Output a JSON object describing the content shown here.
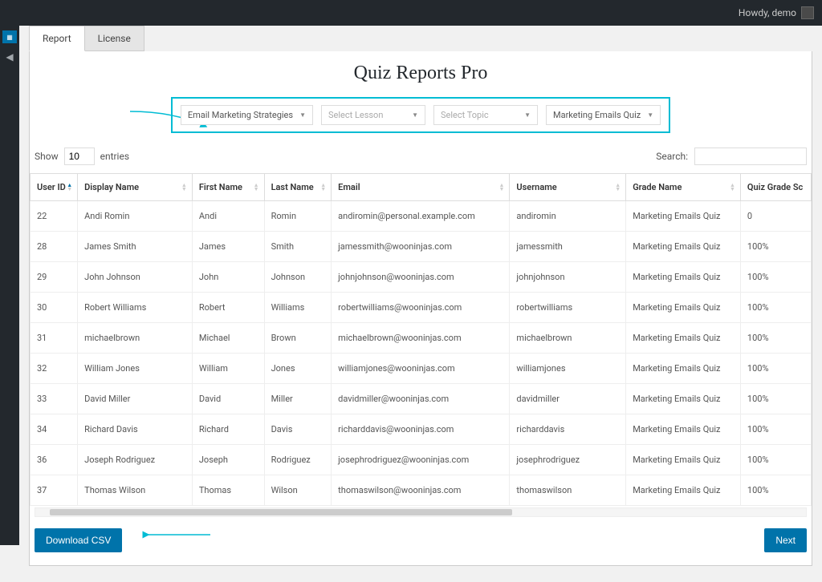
{
  "topbar": {
    "howdy": "Howdy, demo"
  },
  "tabs": {
    "report": "Report",
    "license": "License"
  },
  "page": {
    "title": "Quiz Reports Pro"
  },
  "filters": {
    "course": "Email Marketing Strategies",
    "lesson_placeholder": "Select Lesson",
    "topic_placeholder": "Select Topic",
    "quiz": "Marketing Emails Quiz"
  },
  "controls": {
    "show_label": "Show",
    "entries_value": "10",
    "entries_label": "entries",
    "search_label": "Search:"
  },
  "table": {
    "columns": [
      "User ID",
      "Display Name",
      "First Name",
      "Last Name",
      "Email",
      "Username",
      "Grade Name",
      "Quiz Grade Sc"
    ],
    "rows": [
      [
        "22",
        "Andi Romin",
        "Andi",
        "Romin",
        "andiromin@personal.example.com",
        "andiromin",
        "Marketing Emails Quiz",
        "0"
      ],
      [
        "28",
        "James Smith",
        "James",
        "Smith",
        "jamessmith@wooninjas.com",
        "jamessmith",
        "Marketing Emails Quiz",
        "100%"
      ],
      [
        "29",
        "John Johnson",
        "John",
        "Johnson",
        "johnjohnson@wooninjas.com",
        "johnjohnson",
        "Marketing Emails Quiz",
        "100%"
      ],
      [
        "30",
        "Robert Williams",
        "Robert",
        "Williams",
        "robertwilliams@wooninjas.com",
        "robertwilliams",
        "Marketing Emails Quiz",
        "100%"
      ],
      [
        "31",
        "michaelbrown",
        "Michael",
        "Brown",
        "michaelbrown@wooninjas.com",
        "michaelbrown",
        "Marketing Emails Quiz",
        "100%"
      ],
      [
        "32",
        "William Jones",
        "William",
        "Jones",
        "williamjones@wooninjas.com",
        "williamjones",
        "Marketing Emails Quiz",
        "100%"
      ],
      [
        "33",
        "David Miller",
        "David",
        "Miller",
        "davidmiller@wooninjas.com",
        "davidmiller",
        "Marketing Emails Quiz",
        "100%"
      ],
      [
        "34",
        "Richard Davis",
        "Richard",
        "Davis",
        "richarddavis@wooninjas.com",
        "richarddavis",
        "Marketing Emails Quiz",
        "100%"
      ],
      [
        "36",
        "Joseph Rodriguez",
        "Joseph",
        "Rodriguez",
        "josephrodriguez@wooninjas.com",
        "josephrodriguez",
        "Marketing Emails Quiz",
        "100%"
      ],
      [
        "37",
        "Thomas Wilson",
        "Thomas",
        "Wilson",
        "thomaswilson@wooninjas.com",
        "thomaswilson",
        "Marketing Emails Quiz",
        "100%"
      ]
    ]
  },
  "footer": {
    "download": "Download CSV",
    "next": "Next"
  },
  "colors": {
    "accent": "#0073aa",
    "highlight": "#00bcd4",
    "adminbar": "#23282d"
  }
}
